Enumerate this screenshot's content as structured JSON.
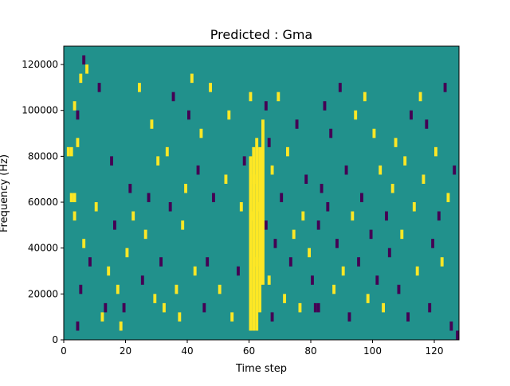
{
  "chart_data": {
    "type": "heatmap",
    "title": "Predicted : Gma",
    "xlabel": "Time step",
    "ylabel": "Frequency (Hz)",
    "xlim": [
      0,
      128
    ],
    "ylim": [
      0,
      128000
    ],
    "x_ticks": [
      {
        "value": 0,
        "label": "0"
      },
      {
        "value": 20,
        "label": "20"
      },
      {
        "value": 40,
        "label": "40"
      },
      {
        "value": 60,
        "label": "60"
      },
      {
        "value": 80,
        "label": "80"
      },
      {
        "value": 100,
        "label": "100"
      },
      {
        "value": 120,
        "label": "120"
      }
    ],
    "y_ticks": [
      {
        "value": 0,
        "label": "0"
      },
      {
        "value": 20000,
        "label": "20000"
      },
      {
        "value": 40000,
        "label": "40000"
      },
      {
        "value": 60000,
        "label": "60000"
      },
      {
        "value": 80000,
        "label": "80000"
      },
      {
        "value": 100000,
        "label": "100000"
      },
      {
        "value": 120000,
        "label": "120000"
      }
    ],
    "grid": false,
    "colormap": "viridis",
    "background_level": 0,
    "colors": {
      "background": "#21918c",
      "high": "#fde725",
      "low": "#440154"
    },
    "bin_height_hz": 4000,
    "cells": [
      {
        "t": 1,
        "f": 80000,
        "v": 1
      },
      {
        "t": 2,
        "f": 80000,
        "v": 1
      },
      {
        "t": 2,
        "f": 60000,
        "v": 1
      },
      {
        "t": 3,
        "f": 60000,
        "v": 1
      },
      {
        "t": 3,
        "f": 52000,
        "v": 1
      },
      {
        "t": 4,
        "f": 84000,
        "v": 1
      },
      {
        "t": 3,
        "f": 100000,
        "v": 1
      },
      {
        "t": 4,
        "f": 96000,
        "v": -1
      },
      {
        "t": 5,
        "f": 112000,
        "v": 1
      },
      {
        "t": 6,
        "f": 120000,
        "v": -1
      },
      {
        "t": 7,
        "f": 116000,
        "v": 1
      },
      {
        "t": 4,
        "f": 4000,
        "v": -1
      },
      {
        "t": 5,
        "f": 20000,
        "v": -1
      },
      {
        "t": 6,
        "f": 40000,
        "v": 1
      },
      {
        "t": 8,
        "f": 32000,
        "v": -1
      },
      {
        "t": 10,
        "f": 56000,
        "v": 1
      },
      {
        "t": 11,
        "f": 108000,
        "v": -1
      },
      {
        "t": 12,
        "f": 8000,
        "v": 1
      },
      {
        "t": 13,
        "f": 12000,
        "v": -1
      },
      {
        "t": 14,
        "f": 28000,
        "v": 1
      },
      {
        "t": 15,
        "f": 76000,
        "v": -1
      },
      {
        "t": 16,
        "f": 48000,
        "v": -1
      },
      {
        "t": 17,
        "f": 20000,
        "v": 1
      },
      {
        "t": 18,
        "f": 4000,
        "v": 1
      },
      {
        "t": 19,
        "f": 12000,
        "v": -1
      },
      {
        "t": 20,
        "f": 36000,
        "v": 1
      },
      {
        "t": 21,
        "f": 64000,
        "v": -1
      },
      {
        "t": 22,
        "f": 52000,
        "v": 1
      },
      {
        "t": 24,
        "f": 108000,
        "v": 1
      },
      {
        "t": 25,
        "f": 24000,
        "v": -1
      },
      {
        "t": 26,
        "f": 44000,
        "v": 1
      },
      {
        "t": 27,
        "f": 60000,
        "v": -1
      },
      {
        "t": 28,
        "f": 92000,
        "v": 1
      },
      {
        "t": 29,
        "f": 16000,
        "v": 1
      },
      {
        "t": 30,
        "f": 76000,
        "v": 1
      },
      {
        "t": 31,
        "f": 32000,
        "v": -1
      },
      {
        "t": 32,
        "f": 12000,
        "v": 1
      },
      {
        "t": 33,
        "f": 80000,
        "v": 1
      },
      {
        "t": 34,
        "f": 56000,
        "v": -1
      },
      {
        "t": 35,
        "f": 104000,
        "v": -1
      },
      {
        "t": 36,
        "f": 20000,
        "v": 1
      },
      {
        "t": 37,
        "f": 8000,
        "v": 1
      },
      {
        "t": 38,
        "f": 48000,
        "v": 1
      },
      {
        "t": 39,
        "f": 64000,
        "v": 1
      },
      {
        "t": 40,
        "f": 96000,
        "v": -1
      },
      {
        "t": 41,
        "f": 112000,
        "v": 1
      },
      {
        "t": 42,
        "f": 28000,
        "v": 1
      },
      {
        "t": 43,
        "f": 72000,
        "v": -1
      },
      {
        "t": 44,
        "f": 88000,
        "v": 1
      },
      {
        "t": 45,
        "f": 12000,
        "v": -1
      },
      {
        "t": 46,
        "f": 32000,
        "v": -1
      },
      {
        "t": 47,
        "f": 108000,
        "v": 1
      },
      {
        "t": 48,
        "f": 60000,
        "v": -1
      },
      {
        "t": 50,
        "f": 20000,
        "v": 1
      },
      {
        "t": 52,
        "f": 68000,
        "v": 1
      },
      {
        "t": 53,
        "f": 96000,
        "v": 1
      },
      {
        "t": 54,
        "f": 8000,
        "v": 1
      },
      {
        "t": 56,
        "f": 28000,
        "v": -1
      },
      {
        "t": 57,
        "f": 56000,
        "v": 1
      },
      {
        "t": 58,
        "f": 76000,
        "v": -1
      },
      {
        "t": 60,
        "f": 104000,
        "v": 1
      },
      {
        "t": 60,
        "f": 52000,
        "v": 1
      },
      {
        "t": 61,
        "f": 68000,
        "v": 1
      },
      {
        "t": 62,
        "f": 32000,
        "v": 1
      },
      {
        "t": 63,
        "f": 56000,
        "v": 1
      },
      {
        "t": 65,
        "f": 100000,
        "v": -1
      },
      {
        "t": 65,
        "f": 48000,
        "v": -1
      },
      {
        "t": 66,
        "f": 84000,
        "v": -1
      },
      {
        "t": 66,
        "f": 24000,
        "v": 1
      },
      {
        "t": 67,
        "f": 72000,
        "v": 1
      },
      {
        "t": 67,
        "f": 8000,
        "v": -1
      },
      {
        "t": 68,
        "f": 40000,
        "v": -1
      },
      {
        "t": 69,
        "f": 104000,
        "v": 1
      },
      {
        "t": 70,
        "f": 60000,
        "v": -1
      },
      {
        "t": 71,
        "f": 16000,
        "v": 1
      },
      {
        "t": 72,
        "f": 80000,
        "v": 1
      },
      {
        "t": 73,
        "f": 32000,
        "v": -1
      },
      {
        "t": 74,
        "f": 44000,
        "v": 1
      },
      {
        "t": 75,
        "f": 92000,
        "v": -1
      },
      {
        "t": 76,
        "f": 12000,
        "v": 1
      },
      {
        "t": 77,
        "f": 52000,
        "v": 1
      },
      {
        "t": 78,
        "f": 68000,
        "v": -1
      },
      {
        "t": 79,
        "f": 36000,
        "v": 1
      },
      {
        "t": 80,
        "f": 24000,
        "v": -1
      },
      {
        "t": 81,
        "f": 12000,
        "v": -1
      },
      {
        "t": 82,
        "f": 12000,
        "v": -1
      },
      {
        "t": 82,
        "f": 48000,
        "v": -1
      },
      {
        "t": 83,
        "f": 64000,
        "v": -1
      },
      {
        "t": 84,
        "f": 100000,
        "v": -1
      },
      {
        "t": 85,
        "f": 56000,
        "v": -1
      },
      {
        "t": 86,
        "f": 88000,
        "v": -1
      },
      {
        "t": 87,
        "f": 20000,
        "v": 1
      },
      {
        "t": 88,
        "f": 40000,
        "v": -1
      },
      {
        "t": 89,
        "f": 108000,
        "v": -1
      },
      {
        "t": 90,
        "f": 28000,
        "v": 1
      },
      {
        "t": 91,
        "f": 72000,
        "v": -1
      },
      {
        "t": 92,
        "f": 8000,
        "v": -1
      },
      {
        "t": 93,
        "f": 52000,
        "v": 1
      },
      {
        "t": 94,
        "f": 96000,
        "v": 1
      },
      {
        "t": 95,
        "f": 32000,
        "v": -1
      },
      {
        "t": 96,
        "f": 60000,
        "v": -1
      },
      {
        "t": 97,
        "f": 104000,
        "v": 1
      },
      {
        "t": 98,
        "f": 16000,
        "v": 1
      },
      {
        "t": 99,
        "f": 44000,
        "v": -1
      },
      {
        "t": 100,
        "f": 88000,
        "v": 1
      },
      {
        "t": 101,
        "f": 24000,
        "v": -1
      },
      {
        "t": 102,
        "f": 72000,
        "v": 1
      },
      {
        "t": 103,
        "f": 12000,
        "v": 1
      },
      {
        "t": 104,
        "f": 52000,
        "v": -1
      },
      {
        "t": 105,
        "f": 36000,
        "v": -1
      },
      {
        "t": 106,
        "f": 64000,
        "v": 1
      },
      {
        "t": 107,
        "f": 84000,
        "v": 1
      },
      {
        "t": 108,
        "f": 20000,
        "v": -1
      },
      {
        "t": 109,
        "f": 44000,
        "v": 1
      },
      {
        "t": 110,
        "f": 76000,
        "v": 1
      },
      {
        "t": 111,
        "f": 8000,
        "v": -1
      },
      {
        "t": 112,
        "f": 96000,
        "v": -1
      },
      {
        "t": 113,
        "f": 56000,
        "v": 1
      },
      {
        "t": 114,
        "f": 28000,
        "v": 1
      },
      {
        "t": 115,
        "f": 104000,
        "v": 1
      },
      {
        "t": 116,
        "f": 68000,
        "v": 1
      },
      {
        "t": 117,
        "f": 92000,
        "v": -1
      },
      {
        "t": 118,
        "f": 12000,
        "v": -1
      },
      {
        "t": 119,
        "f": 40000,
        "v": -1
      },
      {
        "t": 120,
        "f": 80000,
        "v": 1
      },
      {
        "t": 121,
        "f": 52000,
        "v": -1
      },
      {
        "t": 122,
        "f": 32000,
        "v": 1
      },
      {
        "t": 123,
        "f": 108000,
        "v": -1
      },
      {
        "t": 124,
        "f": 60000,
        "v": 1
      },
      {
        "t": 125,
        "f": 4000,
        "v": -1
      },
      {
        "t": 126,
        "f": 72000,
        "v": -1
      },
      {
        "t": 127,
        "f": 0,
        "v": -1
      }
    ]
  }
}
